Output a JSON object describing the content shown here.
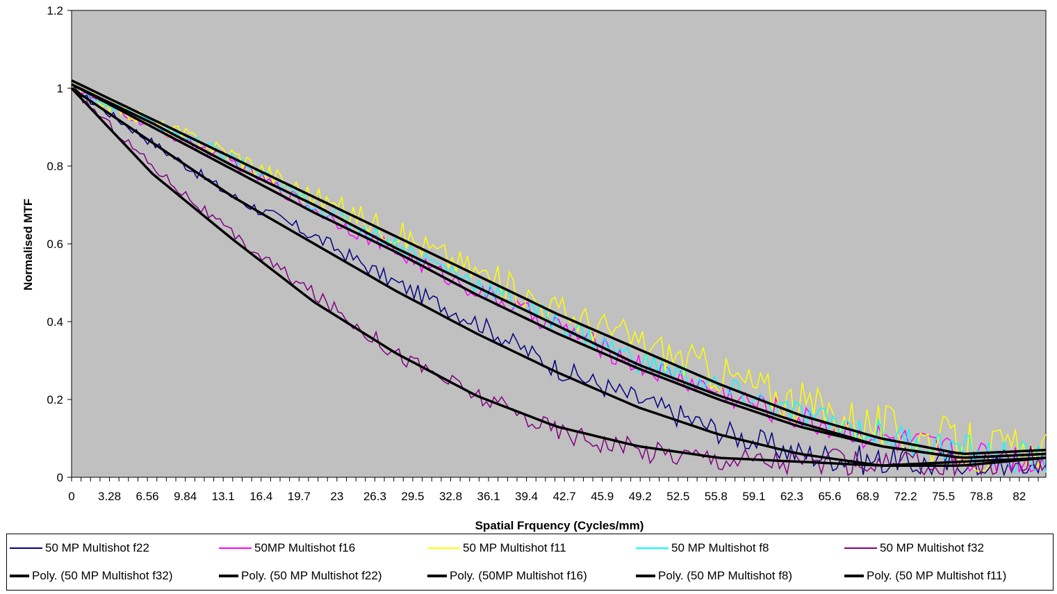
{
  "chart_data": {
    "type": "line",
    "title": "",
    "xlabel": "Spatial Frquency (Cycles/mm)",
    "ylabel": "Normalised MTF",
    "xlim": [
      0,
      84.3
    ],
    "ylim": [
      0,
      1.2
    ],
    "y_ticks": [
      "0",
      "0.2",
      "0.4",
      "0.6",
      "0.8",
      "1",
      "1.2"
    ],
    "x_ticks": [
      "0",
      "3.28",
      "6.56",
      "9.84",
      "13.1",
      "16.4",
      "19.7",
      "23",
      "26.3",
      "29.5",
      "32.8",
      "36.1",
      "39.4",
      "42.7",
      "45.9",
      "49.2",
      "52.5",
      "55.8",
      "59.1",
      "62.3",
      "65.6",
      "68.9",
      "72.2",
      "75.5",
      "78.8",
      "82"
    ],
    "plot_background": "#c0c0c0",
    "grid": false,
    "legend_position": "bottom",
    "series": [
      {
        "name": "50 MP Multishot f22",
        "color": "#000080",
        "values": [
          1.0,
          0.86,
          0.72,
          0.62,
          0.5,
          0.4,
          0.28,
          0.2,
          0.12,
          0.06,
          0.04,
          0.03,
          0.03
        ]
      },
      {
        "name": "50MP Multishot f16",
        "color": "#ff00ff",
        "values": [
          1.0,
          0.9,
          0.81,
          0.69,
          0.58,
          0.48,
          0.39,
          0.29,
          0.22,
          0.15,
          0.1,
          0.06,
          0.04
        ]
      },
      {
        "name": "50 MP Multishot f11",
        "color": "#ffff00",
        "values": [
          1.0,
          0.91,
          0.83,
          0.72,
          0.63,
          0.53,
          0.43,
          0.35,
          0.27,
          0.19,
          0.13,
          0.08,
          0.05
        ]
      },
      {
        "name": "50 MP Multishot f8",
        "color": "#00ffff",
        "values": [
          1.0,
          0.91,
          0.82,
          0.7,
          0.6,
          0.5,
          0.4,
          0.3,
          0.23,
          0.16,
          0.11,
          0.07,
          0.04
        ]
      },
      {
        "name": "50 MP Multishot f32",
        "color": "#800080",
        "values": [
          1.0,
          0.8,
          0.62,
          0.47,
          0.32,
          0.21,
          0.12,
          0.07,
          0.05,
          0.04,
          0.03,
          0.03,
          0.04
        ]
      },
      {
        "name": "Poly. (50 MP Multishot f32)",
        "color": "#000000",
        "trend": true,
        "values": [
          1.0,
          0.78,
          0.61,
          0.45,
          0.32,
          0.21,
          0.13,
          0.08,
          0.05,
          0.04,
          0.03,
          0.04,
          0.05
        ]
      },
      {
        "name": "Poly. (50 MP Multishot f22)",
        "color": "#000000",
        "trend": true,
        "values": [
          1.0,
          0.86,
          0.72,
          0.6,
          0.48,
          0.37,
          0.27,
          0.18,
          0.11,
          0.06,
          0.03,
          0.03,
          0.05
        ]
      },
      {
        "name": "Poly. (50MP Multishot f16)",
        "color": "#000000",
        "trend": true,
        "values": [
          1.01,
          0.9,
          0.79,
          0.68,
          0.58,
          0.47,
          0.37,
          0.28,
          0.2,
          0.13,
          0.08,
          0.05,
          0.06
        ]
      },
      {
        "name": "Poly. (50 MP Multishot f8)",
        "color": "#000000",
        "trend": true,
        "values": [
          1.01,
          0.91,
          0.8,
          0.7,
          0.59,
          0.49,
          0.39,
          0.29,
          0.21,
          0.14,
          0.08,
          0.05,
          0.06
        ]
      },
      {
        "name": "Poly. (50 MP Multishot f11)",
        "color": "#000000",
        "trend": true,
        "values": [
          1.02,
          0.92,
          0.82,
          0.72,
          0.62,
          0.52,
          0.42,
          0.33,
          0.24,
          0.16,
          0.1,
          0.06,
          0.07
        ]
      }
    ],
    "x": [
      0,
      7,
      14,
      21,
      28,
      35,
      42,
      49,
      56,
      63,
      70,
      77,
      84.3
    ]
  }
}
